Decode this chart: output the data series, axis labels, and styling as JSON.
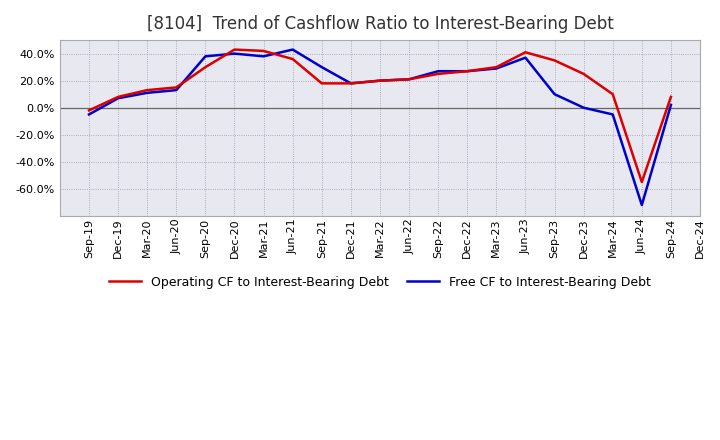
{
  "title": "[8104]  Trend of Cashflow Ratio to Interest-Bearing Debt",
  "x_labels": [
    "Sep-19",
    "Dec-19",
    "Mar-20",
    "Jun-20",
    "Sep-20",
    "Dec-20",
    "Mar-21",
    "Jun-21",
    "Sep-21",
    "Dec-21",
    "Mar-22",
    "Jun-22",
    "Sep-22",
    "Dec-22",
    "Mar-23",
    "Jun-23",
    "Sep-23",
    "Dec-23",
    "Mar-24",
    "Jun-24",
    "Sep-24",
    "Dec-24"
  ],
  "operating_cf": [
    -2.0,
    8.0,
    13.0,
    15.0,
    30.0,
    43.0,
    42.0,
    36.0,
    18.0,
    18.0,
    20.0,
    21.0,
    25.0,
    27.0,
    30.0,
    41.0,
    35.0,
    25.0,
    10.0,
    -55.0,
    8.0,
    null
  ],
  "free_cf": [
    -5.0,
    7.0,
    11.0,
    13.0,
    38.0,
    40.0,
    38.0,
    43.0,
    30.0,
    18.0,
    20.0,
    21.0,
    27.0,
    27.0,
    29.0,
    37.0,
    10.0,
    0.0,
    -5.0,
    -72.0,
    2.0,
    null
  ],
  "operating_color": "#dd0000",
  "free_color": "#0000cc",
  "ylim": [
    -80,
    50
  ],
  "yticks": [
    40.0,
    20.0,
    0.0,
    -20.0,
    -40.0,
    -60.0
  ],
  "background_color": "#ffffff",
  "plot_bg_color": "#e8e8f0",
  "grid_color": "#9999aa",
  "legend_op": "Operating CF to Interest-Bearing Debt",
  "legend_free": "Free CF to Interest-Bearing Debt",
  "title_fontsize": 12,
  "tick_fontsize": 8,
  "legend_fontsize": 9
}
